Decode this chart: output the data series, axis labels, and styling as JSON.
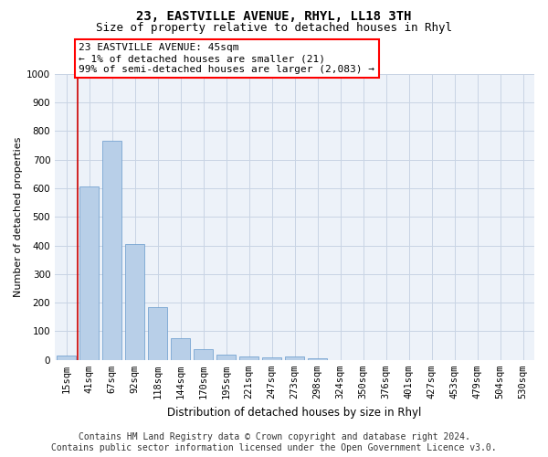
{
  "title": "23, EASTVILLE AVENUE, RHYL, LL18 3TH",
  "subtitle": "Size of property relative to detached houses in Rhyl",
  "xlabel": "Distribution of detached houses by size in Rhyl",
  "ylabel": "Number of detached properties",
  "categories": [
    "15sqm",
    "41sqm",
    "67sqm",
    "92sqm",
    "118sqm",
    "144sqm",
    "170sqm",
    "195sqm",
    "221sqm",
    "247sqm",
    "273sqm",
    "298sqm",
    "324sqm",
    "350sqm",
    "376sqm",
    "401sqm",
    "427sqm",
    "453sqm",
    "479sqm",
    "504sqm",
    "530sqm"
  ],
  "values": [
    15,
    605,
    765,
    405,
    185,
    75,
    38,
    18,
    12,
    10,
    12,
    7,
    0,
    0,
    0,
    0,
    0,
    0,
    0,
    0,
    0
  ],
  "bar_color": "#b8cfe8",
  "bar_edge_color": "#6699cc",
  "red_line_color": "#cc0000",
  "red_line_x": 0.5,
  "annotation_line1": "23 EASTVILLE AVENUE: 45sqm",
  "annotation_line2": "← 1% of detached houses are smaller (21)",
  "annotation_line3": "99% of semi-detached houses are larger (2,083) →",
  "ylim_max": 1000,
  "yticks": [
    0,
    100,
    200,
    300,
    400,
    500,
    600,
    700,
    800,
    900,
    1000
  ],
  "grid_color": "#c8d4e4",
  "bg_color": "#edf2f9",
  "footer1": "Contains HM Land Registry data © Crown copyright and database right 2024.",
  "footer2": "Contains public sector information licensed under the Open Government Licence v3.0.",
  "title_fontsize": 10,
  "subtitle_fontsize": 9,
  "tick_fontsize": 7.5,
  "ylabel_fontsize": 8,
  "xlabel_fontsize": 8.5,
  "footer_fontsize": 7,
  "annot_fontsize": 8
}
